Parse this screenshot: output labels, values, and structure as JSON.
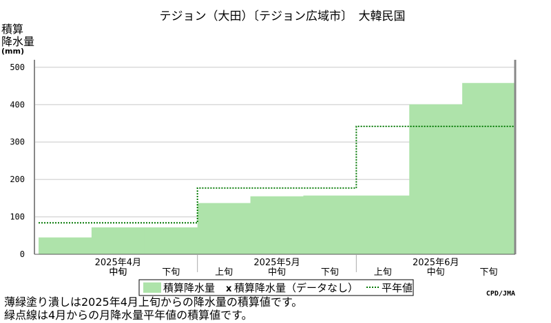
{
  "chart_data": {
    "type": "area",
    "title": "テジョン（大田）〔テジョン広域市〕　大韓民国",
    "ylabel_lines": [
      "積算",
      "降水量"
    ],
    "yunit": "(mm)",
    "ylim": [
      0,
      520
    ],
    "yticks": [
      "0",
      "100",
      "200",
      "300",
      "400",
      "500"
    ],
    "ytick_values": [
      0,
      100,
      200,
      300,
      400,
      500
    ],
    "categories": [
      "上旬",
      "中旬",
      "下旬",
      "上旬",
      "中旬",
      "下旬",
      "上旬",
      "中旬",
      "下旬"
    ],
    "month_labels": [
      {
        "label": "2025年4月",
        "index": 1
      },
      {
        "label": "2025年5月",
        "index": 4
      },
      {
        "label": "2025年6月",
        "index": 7
      }
    ],
    "hidden_category_indices": [
      0,
      4,
      7
    ],
    "series": [
      {
        "name": "積算降水量",
        "kind": "filled-step",
        "color": "#aee3aa",
        "values": [
          45,
          72,
          72,
          137,
          155,
          157,
          157,
          401,
          458
        ]
      },
      {
        "name": "平年値",
        "kind": "dotted-step",
        "color": "#007700",
        "values": [
          84,
          84,
          84,
          177,
          177,
          177,
          342,
          342,
          342
        ]
      }
    ],
    "legend": {
      "items": [
        {
          "label": "積算降水量",
          "swatch": "#aee3aa"
        },
        {
          "label": "積算降水量（データなし）",
          "marker": "x"
        },
        {
          "label": "平年値",
          "line": "#007700"
        }
      ],
      "placement": "bottom"
    },
    "grid": "horizontal",
    "credit": "CPD/JMA"
  },
  "notes": [
    "薄緑塗り潰しは2025年4月上旬からの降水量の積算値です。",
    "緑点線は4月からの月降水量平年値の積算値です。"
  ]
}
